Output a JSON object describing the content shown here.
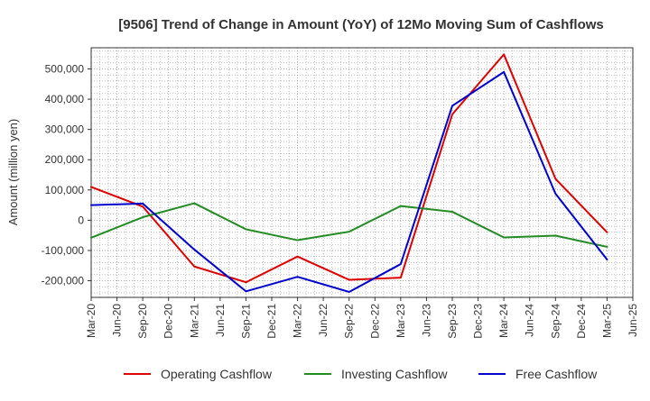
{
  "chart_data": {
    "type": "line",
    "title": "[9506]  Trend of Change in Amount (YoY) of 12Mo Moving Sum of Cashflows",
    "ylabel": "Amount (million yen)",
    "xlabel": "",
    "ylim": [
      -255000,
      570000
    ],
    "y_ticks": [
      -200000,
      -100000,
      0,
      100000,
      200000,
      300000,
      400000,
      500000
    ],
    "y_tick_labels": [
      "-200,000",
      "-100,000",
      "0",
      "100,000",
      "200,000",
      "300,000",
      "400,000",
      "500,000"
    ],
    "x_ticks": [
      "Mar-20",
      "Jun-20",
      "Sep-20",
      "Dec-20",
      "Mar-21",
      "Jun-21",
      "Sep-21",
      "Dec-21",
      "Mar-22",
      "Jun-22",
      "Sep-22",
      "Dec-22",
      "Mar-23",
      "Jun-23",
      "Sep-23",
      "Dec-23",
      "Mar-24",
      "Jun-24",
      "Sep-24",
      "Dec-24",
      "Mar-25",
      "Jun-25"
    ],
    "grid": true,
    "legend_position": "bottom",
    "series": [
      {
        "name": "Operating Cashflow",
        "color": "#dd0000",
        "x": [
          "Mar-20",
          "Sep-20",
          "Mar-21",
          "Sep-21",
          "Mar-22",
          "Sep-22",
          "Mar-23",
          "Sep-23",
          "Mar-24",
          "Sep-24",
          "Mar-25"
        ],
        "values": [
          110000,
          45000,
          -153000,
          -205000,
          -120000,
          -197000,
          -190000,
          350000,
          548000,
          137000,
          -40000
        ]
      },
      {
        "name": "Investing Cashflow",
        "color": "#228b22",
        "x": [
          "Mar-20",
          "Sep-20",
          "Mar-21",
          "Sep-21",
          "Mar-22",
          "Sep-22",
          "Mar-23",
          "Sep-23",
          "Mar-24",
          "Sep-24",
          "Mar-25"
        ],
        "values": [
          -58000,
          10000,
          56000,
          -30000,
          -66000,
          -38000,
          47000,
          28000,
          -57000,
          -51000,
          -88000
        ]
      },
      {
        "name": "Free Cashflow",
        "color": "#0000cc",
        "x": [
          "Mar-20",
          "Sep-20",
          "Mar-21",
          "Sep-21",
          "Mar-22",
          "Sep-22",
          "Mar-23",
          "Sep-23",
          "Mar-24",
          "Sep-24",
          "Mar-25"
        ],
        "values": [
          50000,
          55000,
          -97000,
          -235000,
          -187000,
          -237000,
          -145000,
          378000,
          490000,
          88000,
          -130000
        ]
      }
    ]
  }
}
